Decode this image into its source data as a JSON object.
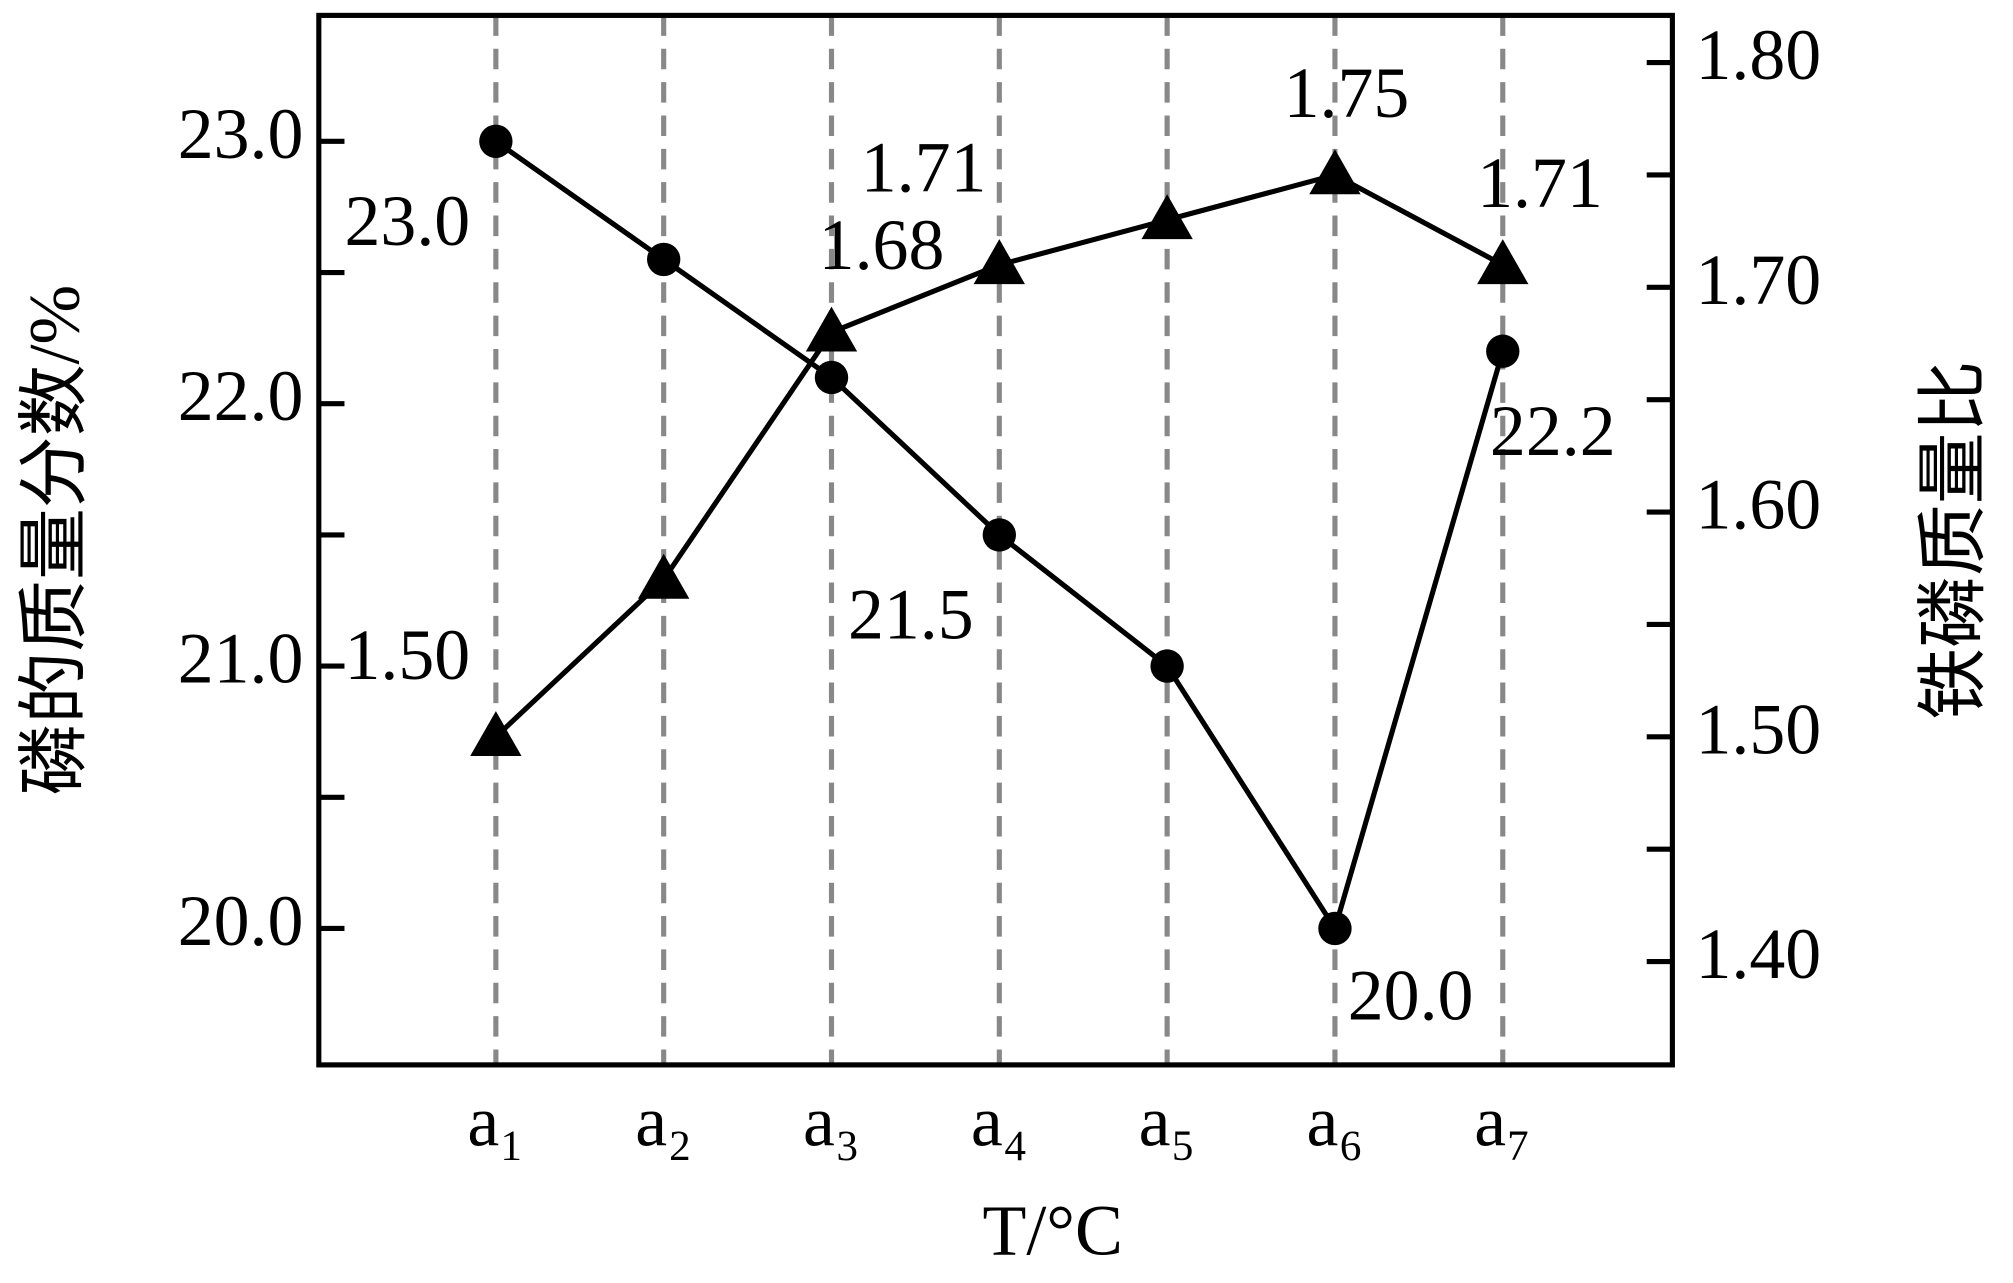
{
  "chart_data": {
    "type": "line",
    "categories": [
      "a₁",
      "a₂",
      "a₃",
      "a₄",
      "a₅",
      "a₆",
      "a₇"
    ],
    "x_label": "T/°C",
    "y_label": "磷的质量分数/%",
    "y2_label": "铁磷质量比",
    "ylim": [
      19.48,
      23.48
    ],
    "yticks": [
      {
        "value": 20,
        "label": "20.0"
      },
      {
        "value": 21,
        "label": "21.0"
      },
      {
        "value": 22,
        "label": "22.0"
      },
      {
        "value": 23,
        "label": "23.0"
      }
    ],
    "yminor_ticks": [
      20.5,
      21.5,
      22.5
    ],
    "y2lim": [
      1.354,
      1.821
    ],
    "y2ticks": [
      {
        "value": 1.4,
        "label": "1.40"
      },
      {
        "value": 1.5,
        "label": "1.50"
      },
      {
        "value": 1.6,
        "label": "1.60"
      },
      {
        "value": 1.7,
        "label": "1.70"
      },
      {
        "value": 1.8,
        "label": "1.80"
      }
    ],
    "y2minor_ticks": [
      1.45,
      1.55,
      1.65,
      1.75
    ],
    "grid": true,
    "series": [
      {
        "marker": "circle",
        "color": "#000000",
        "values": [
          23.0,
          22.55,
          22.1,
          21.5,
          21.0,
          20.0,
          22.2
        ],
        "value_labels": [
          "23.0",
          null,
          null,
          "21.5",
          null,
          "20.0",
          "22.2"
        ]
      },
      {
        "marker": "triangle",
        "color": "#000000",
        "axis": "y2",
        "values": [
          1.5,
          1.57,
          1.68,
          1.71,
          1.73,
          1.75,
          1.71
        ],
        "value_labels": [
          "1.50",
          null,
          "1.68",
          "1.71",
          null,
          "1.75",
          "1.71"
        ]
      }
    ]
  }
}
